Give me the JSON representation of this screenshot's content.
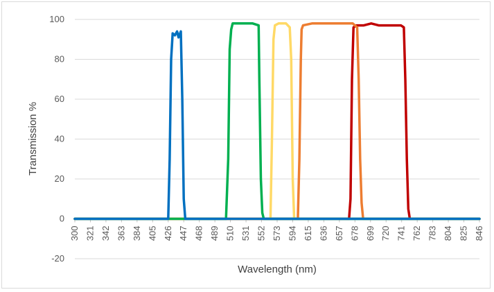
{
  "chart_data": {
    "type": "line",
    "title": "",
    "xlabel": "Wavelength (nm)",
    "ylabel": "Transmission %",
    "ylim": [
      -20,
      100
    ],
    "yticks": [
      -20,
      0,
      20,
      40,
      60,
      80,
      100
    ],
    "xlim": [
      300,
      846
    ],
    "xticks": [
      300,
      321,
      342,
      363,
      384,
      405,
      426,
      447,
      468,
      489,
      510,
      531,
      552,
      573,
      594,
      615,
      636,
      657,
      678,
      699,
      720,
      741,
      762,
      783,
      804,
      825,
      846
    ],
    "grid": "horizontal",
    "legend": "none",
    "series": [
      {
        "color": "#c00000",
        "x": [
          300,
          670,
          672,
          674,
          676,
          680,
          690,
          700,
          710,
          720,
          730,
          740,
          744,
          746,
          748,
          750,
          752,
          846
        ],
        "y": [
          0,
          0,
          10,
          70,
          96,
          97,
          97,
          98,
          97,
          97,
          97,
          97,
          96,
          70,
          30,
          5,
          0,
          0
        ]
      },
      {
        "color": "#ed7d31",
        "x": [
          300,
          601,
          603,
          605,
          606,
          608,
          620,
          640,
          660,
          675,
          681,
          683,
          685,
          687,
          689,
          846
        ],
        "y": [
          0,
          0,
          30,
          80,
          95,
          97,
          98,
          98,
          98,
          98,
          96,
          70,
          30,
          8,
          0,
          0
        ]
      },
      {
        "color": "#ffd966",
        "x": [
          300,
          564,
          566,
          568,
          570,
          575,
          585,
          590,
          592,
          594,
          596,
          846
        ],
        "y": [
          0,
          0,
          40,
          90,
          97,
          98,
          98,
          96,
          80,
          20,
          0,
          0
        ]
      },
      {
        "color": "#00b050",
        "x": [
          300,
          504,
          507,
          509,
          511,
          513,
          520,
          530,
          540,
          548,
          549,
          551,
          553,
          555,
          846
        ],
        "y": [
          0,
          0,
          30,
          85,
          95,
          98,
          98,
          98,
          98,
          97,
          70,
          20,
          3,
          0,
          0
        ]
      },
      {
        "color": "#0070c0",
        "x": [
          300,
          426,
          428,
          430,
          432,
          435,
          438,
          440,
          443,
          445,
          447,
          449,
          846
        ],
        "y": [
          0,
          0,
          30,
          80,
          93,
          92,
          94,
          91,
          94,
          60,
          10,
          0,
          0
        ]
      }
    ]
  }
}
